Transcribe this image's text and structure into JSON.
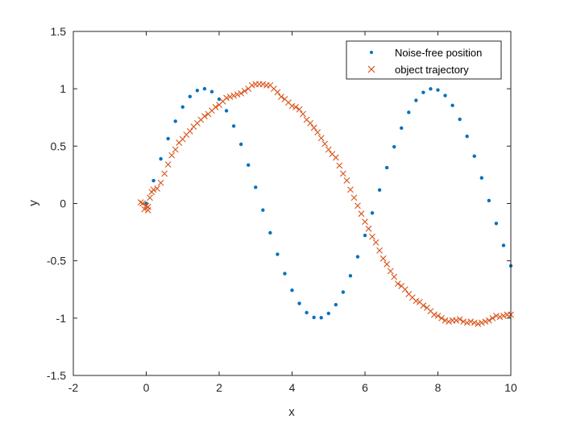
{
  "chart_data": {
    "type": "scatter",
    "title": "",
    "xlabel": "x",
    "ylabel": "y",
    "xlim": [
      -2,
      10
    ],
    "ylim": [
      -1.5,
      1.5
    ],
    "xticks": [
      "-2",
      "0",
      "2",
      "4",
      "6",
      "8",
      "10"
    ],
    "yticks": [
      "-1.5",
      "-1",
      "-0.5",
      "0",
      "0.5",
      "1",
      "1.5"
    ],
    "grid": false,
    "legend_position": "top-right",
    "series": [
      {
        "name": "Noise-free position",
        "marker": "dot",
        "color": "#0072BD",
        "x": [
          0,
          0.2,
          0.4,
          0.6,
          0.8,
          1.0,
          1.2,
          1.4,
          1.6,
          1.8,
          2.0,
          2.2,
          2.4,
          2.6,
          2.8,
          3.0,
          3.2,
          3.4,
          3.6,
          3.8,
          4.0,
          4.2,
          4.4,
          4.6,
          4.8,
          5.0,
          5.2,
          5.4,
          5.6,
          5.8,
          6.0,
          6.2,
          6.4,
          6.6,
          6.8,
          7.0,
          7.2,
          7.4,
          7.6,
          7.8,
          8.0,
          8.2,
          8.4,
          8.6,
          8.8,
          9.0,
          9.2,
          9.4,
          9.6,
          9.8,
          10.0
        ],
        "y": [
          0,
          0.199,
          0.389,
          0.565,
          0.717,
          0.841,
          0.932,
          0.985,
          0.9996,
          0.974,
          0.909,
          0.808,
          0.675,
          0.516,
          0.335,
          0.141,
          -0.058,
          -0.256,
          -0.443,
          -0.612,
          -0.757,
          -0.872,
          -0.952,
          -0.994,
          -0.996,
          -0.959,
          -0.883,
          -0.773,
          -0.631,
          -0.465,
          -0.279,
          -0.083,
          0.117,
          0.312,
          0.494,
          0.657,
          0.794,
          0.899,
          0.968,
          0.999,
          0.989,
          0.941,
          0.855,
          0.734,
          0.585,
          0.412,
          0.223,
          0.025,
          -0.174,
          -0.366,
          -0.544
        ]
      },
      {
        "name": "object trajectory",
        "marker": "x",
        "color": "#D95319",
        "x": [
          -0.15,
          -0.05,
          0.05,
          0.1,
          0.15,
          0.2,
          0.3,
          0.4,
          0.5,
          0.6,
          0.7,
          0.8,
          0.9,
          1.0,
          1.1,
          1.2,
          1.3,
          1.4,
          1.5,
          1.6,
          1.7,
          1.8,
          1.9,
          2.0,
          2.1,
          2.2,
          2.3,
          2.4,
          2.5,
          2.6,
          2.7,
          2.8,
          2.9,
          3.0,
          3.1,
          3.2,
          3.3,
          3.4,
          3.5,
          3.6,
          3.7,
          3.8,
          3.9,
          4.0,
          4.1,
          4.2,
          4.3,
          4.4,
          4.5,
          4.6,
          4.7,
          4.8,
          4.9,
          5.0,
          5.1,
          5.2,
          5.3,
          5.4,
          5.5,
          5.6,
          5.7,
          5.8,
          5.9,
          6.0,
          6.1,
          6.2,
          6.3,
          6.4,
          6.5,
          6.6,
          6.7,
          6.8,
          6.9,
          7.0,
          7.1,
          7.2,
          7.3,
          7.4,
          7.5,
          7.6,
          7.7,
          7.8,
          7.9,
          8.0,
          8.1,
          8.2,
          8.3,
          8.4,
          8.5,
          8.6,
          8.7,
          8.8,
          8.9,
          9.0,
          9.1,
          9.2,
          9.3,
          9.4,
          9.5,
          9.6,
          9.7,
          9.8,
          9.9,
          10.0,
          -0.1,
          0.0,
          0.05
        ],
        "y": [
          0.01,
          -0.05,
          -0.03,
          0.05,
          0.1,
          0.12,
          0.13,
          0.18,
          0.26,
          0.34,
          0.42,
          0.47,
          0.53,
          0.56,
          0.6,
          0.63,
          0.67,
          0.7,
          0.73,
          0.76,
          0.78,
          0.81,
          0.84,
          0.86,
          0.89,
          0.92,
          0.93,
          0.94,
          0.95,
          0.96,
          0.98,
          1.0,
          1.03,
          1.04,
          1.04,
          1.04,
          1.03,
          1.03,
          1.0,
          0.97,
          0.93,
          0.91,
          0.88,
          0.85,
          0.84,
          0.82,
          0.78,
          0.73,
          0.7,
          0.66,
          0.62,
          0.57,
          0.52,
          0.47,
          0.43,
          0.4,
          0.33,
          0.26,
          0.2,
          0.12,
          0.05,
          -0.02,
          -0.09,
          -0.16,
          -0.22,
          -0.29,
          -0.34,
          -0.41,
          -0.48,
          -0.53,
          -0.59,
          -0.64,
          -0.7,
          -0.72,
          -0.75,
          -0.79,
          -0.82,
          -0.85,
          -0.86,
          -0.89,
          -0.91,
          -0.94,
          -0.97,
          -0.98,
          -1.0,
          -1.02,
          -1.03,
          -1.02,
          -1.02,
          -1.01,
          -1.03,
          -1.04,
          -1.03,
          -1.04,
          -1.05,
          -1.04,
          -1.03,
          -1.02,
          -1.0,
          -0.98,
          -0.99,
          -0.98,
          -0.97,
          -0.97,
          0.0,
          -0.02,
          -0.06
        ]
      }
    ]
  }
}
